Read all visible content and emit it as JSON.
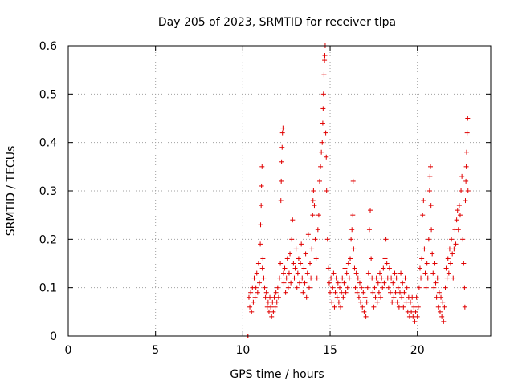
{
  "chart_data": {
    "type": "scatter",
    "title": "Day 205 of 2023, SRMTID for receiver tlpa",
    "xlabel": "GPS time / hours",
    "ylabel": "SRMTID / TECUs",
    "xlim": [
      0,
      24.2
    ],
    "ylim": [
      0,
      0.6
    ],
    "xticks": [
      0,
      5,
      10,
      15,
      20
    ],
    "yticks": [
      0,
      0.1,
      0.2,
      0.3,
      0.4,
      0.5,
      0.6
    ],
    "xtick_labels": [
      "0",
      "5",
      "10",
      "15",
      "20"
    ],
    "ytick_labels": [
      "0",
      "0.1",
      "0.2",
      "0.3",
      "0.4",
      "0.5",
      "0.6"
    ],
    "grid": true,
    "marker": "+",
    "color": "#e00000",
    "series": [
      {
        "name": "SRMTID",
        "points": [
          [
            10.25,
            0.0
          ],
          [
            10.3,
            0.0
          ],
          [
            10.35,
            0.08
          ],
          [
            10.4,
            0.06
          ],
          [
            10.45,
            0.09
          ],
          [
            10.5,
            0.05
          ],
          [
            10.55,
            0.1
          ],
          [
            10.6,
            0.07
          ],
          [
            10.65,
            0.12
          ],
          [
            10.7,
            0.08
          ],
          [
            10.75,
            0.1
          ],
          [
            10.8,
            0.13
          ],
          [
            10.85,
            0.09
          ],
          [
            10.9,
            0.15
          ],
          [
            10.95,
            0.11
          ],
          [
            11.0,
            0.19
          ],
          [
            11.02,
            0.23
          ],
          [
            11.05,
            0.27
          ],
          [
            11.07,
            0.31
          ],
          [
            11.1,
            0.35
          ],
          [
            11.12,
            0.14
          ],
          [
            11.15,
            0.16
          ],
          [
            11.2,
            0.12
          ],
          [
            11.25,
            0.1
          ],
          [
            11.3,
            0.08
          ],
          [
            11.35,
            0.09
          ],
          [
            11.4,
            0.06
          ],
          [
            11.45,
            0.07
          ],
          [
            11.5,
            0.05
          ],
          [
            11.55,
            0.08
          ],
          [
            11.6,
            0.06
          ],
          [
            11.65,
            0.04
          ],
          [
            11.7,
            0.07
          ],
          [
            11.75,
            0.05
          ],
          [
            11.8,
            0.08
          ],
          [
            11.85,
            0.06
          ],
          [
            11.9,
            0.09
          ],
          [
            11.95,
            0.07
          ],
          [
            12.0,
            0.1
          ],
          [
            12.05,
            0.08
          ],
          [
            12.1,
            0.12
          ],
          [
            12.15,
            0.15
          ],
          [
            12.18,
            0.28
          ],
          [
            12.2,
            0.32
          ],
          [
            12.22,
            0.36
          ],
          [
            12.25,
            0.39
          ],
          [
            12.27,
            0.42
          ],
          [
            12.3,
            0.43
          ],
          [
            12.33,
            0.13
          ],
          [
            12.35,
            0.11
          ],
          [
            12.4,
            0.14
          ],
          [
            12.45,
            0.09
          ],
          [
            12.5,
            0.12
          ],
          [
            12.55,
            0.16
          ],
          [
            12.6,
            0.1
          ],
          [
            12.65,
            0.13
          ],
          [
            12.7,
            0.17
          ],
          [
            12.75,
            0.11
          ],
          [
            12.8,
            0.2
          ],
          [
            12.85,
            0.24
          ],
          [
            12.9,
            0.15
          ],
          [
            12.95,
            0.12
          ],
          [
            13.0,
            0.14
          ],
          [
            13.05,
            0.18
          ],
          [
            13.1,
            0.1
          ],
          [
            13.15,
            0.13
          ],
          [
            13.2,
            0.16
          ],
          [
            13.25,
            0.11
          ],
          [
            13.3,
            0.15
          ],
          [
            13.35,
            0.19
          ],
          [
            13.4,
            0.12
          ],
          [
            13.45,
            0.09
          ],
          [
            13.5,
            0.14
          ],
          [
            13.55,
            0.11
          ],
          [
            13.6,
            0.17
          ],
          [
            13.65,
            0.08
          ],
          [
            13.7,
            0.13
          ],
          [
            13.75,
            0.21
          ],
          [
            13.8,
            0.1
          ],
          [
            13.85,
            0.15
          ],
          [
            13.9,
            0.12
          ],
          [
            13.95,
            0.18
          ],
          [
            14.0,
            0.25
          ],
          [
            14.02,
            0.28
          ],
          [
            14.05,
            0.3
          ],
          [
            14.1,
            0.27
          ],
          [
            14.15,
            0.2
          ],
          [
            14.2,
            0.16
          ],
          [
            14.25,
            0.12
          ],
          [
            14.3,
            0.22
          ],
          [
            14.35,
            0.25
          ],
          [
            14.4,
            0.32
          ],
          [
            14.45,
            0.35
          ],
          [
            14.5,
            0.38
          ],
          [
            14.55,
            0.4
          ],
          [
            14.58,
            0.44
          ],
          [
            14.6,
            0.47
          ],
          [
            14.62,
            0.5
          ],
          [
            14.65,
            0.54
          ],
          [
            14.68,
            0.57
          ],
          [
            14.7,
            0.58
          ],
          [
            14.72,
            0.6
          ],
          [
            14.75,
            0.42
          ],
          [
            14.78,
            0.37
          ],
          [
            14.8,
            0.3
          ],
          [
            14.85,
            0.2
          ],
          [
            14.9,
            0.14
          ],
          [
            14.95,
            0.11
          ],
          [
            15.0,
            0.09
          ],
          [
            15.05,
            0.12
          ],
          [
            15.1,
            0.07
          ],
          [
            15.15,
            0.1
          ],
          [
            15.2,
            0.13
          ],
          [
            15.25,
            0.06
          ],
          [
            15.3,
            0.09
          ],
          [
            15.35,
            0.12
          ],
          [
            15.4,
            0.08
          ],
          [
            15.45,
            0.11
          ],
          [
            15.5,
            0.07
          ],
          [
            15.55,
            0.1
          ],
          [
            15.6,
            0.06
          ],
          [
            15.65,
            0.09
          ],
          [
            15.7,
            0.12
          ],
          [
            15.75,
            0.08
          ],
          [
            15.8,
            0.11
          ],
          [
            15.85,
            0.14
          ],
          [
            15.9,
            0.09
          ],
          [
            15.95,
            0.13
          ],
          [
            16.0,
            0.1
          ],
          [
            16.05,
            0.15
          ],
          [
            16.1,
            0.12
          ],
          [
            16.15,
            0.16
          ],
          [
            16.2,
            0.2
          ],
          [
            16.25,
            0.22
          ],
          [
            16.3,
            0.25
          ],
          [
            16.32,
            0.32
          ],
          [
            16.35,
            0.18
          ],
          [
            16.4,
            0.14
          ],
          [
            16.45,
            0.1
          ],
          [
            16.5,
            0.13
          ],
          [
            16.55,
            0.09
          ],
          [
            16.6,
            0.12
          ],
          [
            16.65,
            0.08
          ],
          [
            16.7,
            0.11
          ],
          [
            16.75,
            0.07
          ],
          [
            16.8,
            0.1
          ],
          [
            16.85,
            0.06
          ],
          [
            16.9,
            0.09
          ],
          [
            16.95,
            0.05
          ],
          [
            17.0,
            0.08
          ],
          [
            17.05,
            0.04
          ],
          [
            17.1,
            0.07
          ],
          [
            17.15,
            0.1
          ],
          [
            17.2,
            0.13
          ],
          [
            17.25,
            0.22
          ],
          [
            17.3,
            0.26
          ],
          [
            17.35,
            0.16
          ],
          [
            17.4,
            0.12
          ],
          [
            17.45,
            0.09
          ],
          [
            17.5,
            0.06
          ],
          [
            17.55,
            0.1
          ],
          [
            17.6,
            0.08
          ],
          [
            17.65,
            0.12
          ],
          [
            17.7,
            0.07
          ],
          [
            17.75,
            0.11
          ],
          [
            17.8,
            0.09
          ],
          [
            17.85,
            0.13
          ],
          [
            17.9,
            0.08
          ],
          [
            17.95,
            0.12
          ],
          [
            18.0,
            0.1
          ],
          [
            18.05,
            0.14
          ],
          [
            18.1,
            0.11
          ],
          [
            18.15,
            0.16
          ],
          [
            18.2,
            0.2
          ],
          [
            18.25,
            0.15
          ],
          [
            18.3,
            0.12
          ],
          [
            18.35,
            0.1
          ],
          [
            18.4,
            0.14
          ],
          [
            18.45,
            0.09
          ],
          [
            18.5,
            0.12
          ],
          [
            18.55,
            0.07
          ],
          [
            18.6,
            0.11
          ],
          [
            18.65,
            0.08
          ],
          [
            18.7,
            0.13
          ],
          [
            18.75,
            0.09
          ],
          [
            18.8,
            0.12
          ],
          [
            18.85,
            0.07
          ],
          [
            18.9,
            0.1
          ],
          [
            18.95,
            0.06
          ],
          [
            19.0,
            0.09
          ],
          [
            19.05,
            0.13
          ],
          [
            19.1,
            0.08
          ],
          [
            19.15,
            0.11
          ],
          [
            19.2,
            0.06
          ],
          [
            19.25,
            0.09
          ],
          [
            19.3,
            0.12
          ],
          [
            19.35,
            0.07
          ],
          [
            19.4,
            0.1
          ],
          [
            19.45,
            0.05
          ],
          [
            19.5,
            0.08
          ],
          [
            19.55,
            0.04
          ],
          [
            19.6,
            0.07
          ],
          [
            19.65,
            0.05
          ],
          [
            19.7,
            0.08
          ],
          [
            19.75,
            0.04
          ],
          [
            19.8,
            0.06
          ],
          [
            19.85,
            0.03
          ],
          [
            19.9,
            0.05
          ],
          [
            19.95,
            0.08
          ],
          [
            20.0,
            0.04
          ],
          [
            20.05,
            0.06
          ],
          [
            20.1,
            0.1
          ],
          [
            20.15,
            0.14
          ],
          [
            20.2,
            0.12
          ],
          [
            20.25,
            0.16
          ],
          [
            20.3,
            0.25
          ],
          [
            20.35,
            0.28
          ],
          [
            20.4,
            0.18
          ],
          [
            20.45,
            0.13
          ],
          [
            20.5,
            0.1
          ],
          [
            20.55,
            0.15
          ],
          [
            20.6,
            0.12
          ],
          [
            20.65,
            0.2
          ],
          [
            20.7,
            0.3
          ],
          [
            20.72,
            0.33
          ],
          [
            20.75,
            0.35
          ],
          [
            20.78,
            0.27
          ],
          [
            20.8,
            0.22
          ],
          [
            20.85,
            0.17
          ],
          [
            20.9,
            0.13
          ],
          [
            20.95,
            0.1
          ],
          [
            21.0,
            0.15
          ],
          [
            21.05,
            0.11
          ],
          [
            21.1,
            0.08
          ],
          [
            21.15,
            0.12
          ],
          [
            21.2,
            0.06
          ],
          [
            21.25,
            0.09
          ],
          [
            21.3,
            0.05
          ],
          [
            21.35,
            0.08
          ],
          [
            21.4,
            0.04
          ],
          [
            21.45,
            0.07
          ],
          [
            21.5,
            0.03
          ],
          [
            21.55,
            0.06
          ],
          [
            21.6,
            0.1
          ],
          [
            21.65,
            0.14
          ],
          [
            21.7,
            0.12
          ],
          [
            21.75,
            0.16
          ],
          [
            21.8,
            0.13
          ],
          [
            21.85,
            0.18
          ],
          [
            21.9,
            0.15
          ],
          [
            21.95,
            0.2
          ],
          [
            22.0,
            0.17
          ],
          [
            22.05,
            0.12
          ],
          [
            22.1,
            0.18
          ],
          [
            22.15,
            0.22
          ],
          [
            22.2,
            0.19
          ],
          [
            22.25,
            0.24
          ],
          [
            22.3,
            0.26
          ],
          [
            22.35,
            0.22
          ],
          [
            22.4,
            0.27
          ],
          [
            22.45,
            0.25
          ],
          [
            22.5,
            0.3
          ],
          [
            22.55,
            0.33
          ],
          [
            22.6,
            0.2
          ],
          [
            22.65,
            0.15
          ],
          [
            22.7,
            0.1
          ],
          [
            22.72,
            0.06
          ],
          [
            22.75,
            0.28
          ],
          [
            22.78,
            0.32
          ],
          [
            22.8,
            0.35
          ],
          [
            22.82,
            0.38
          ],
          [
            22.85,
            0.42
          ],
          [
            22.88,
            0.45
          ],
          [
            22.9,
            0.3
          ]
        ]
      }
    ]
  }
}
